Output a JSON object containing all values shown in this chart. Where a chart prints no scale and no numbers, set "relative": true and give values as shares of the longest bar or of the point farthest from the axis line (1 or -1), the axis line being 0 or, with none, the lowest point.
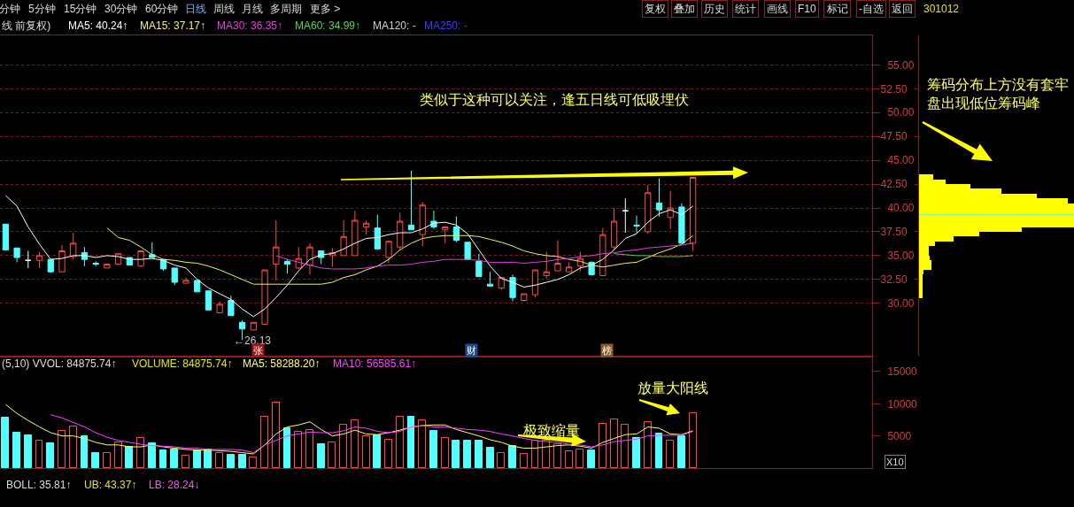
{
  "chart_data": [
    {
      "type": "candlestick",
      "title": "线 前复权)",
      "categories": [
        null,
        null,
        null,
        null,
        null,
        null,
        null,
        null,
        null,
        null,
        null,
        null,
        null,
        null,
        null,
        null,
        null,
        null,
        null,
        null,
        null,
        null,
        null,
        null,
        null,
        null,
        null,
        null,
        null,
        null,
        null,
        null,
        null,
        null,
        null,
        null,
        null,
        null,
        null,
        null,
        null,
        null,
        null,
        null,
        null,
        null,
        null,
        null,
        null,
        null,
        null,
        null,
        null,
        null,
        null,
        null,
        null,
        null,
        null,
        null,
        null,
        null
      ],
      "ohlc": [
        [
          38.3,
          38.3,
          35.6,
          35.6
        ],
        [
          35.8,
          35.8,
          34.3,
          34.8
        ],
        [
          34.5,
          35.5,
          33.7,
          34.5
        ],
        [
          34.5,
          35.4,
          33.7,
          35.0
        ],
        [
          34.6,
          34.6,
          33.2,
          33.3
        ],
        [
          33.3,
          36.1,
          33.3,
          35.5
        ],
        [
          34.9,
          37.4,
          34.6,
          36.3
        ],
        [
          35.3,
          35.9,
          33.9,
          34.6
        ],
        [
          34.2,
          34.4,
          33.9,
          34.1
        ],
        [
          33.7,
          34.1,
          33.7,
          34.1
        ],
        [
          34.1,
          35.2,
          34.0,
          35.2
        ],
        [
          34.8,
          34.8,
          34.0,
          34.0
        ],
        [
          33.9,
          35.5,
          33.8,
          35.5
        ],
        [
          35.1,
          36.4,
          34.8,
          34.8
        ],
        [
          34.6,
          34.6,
          33.4,
          33.6
        ],
        [
          33.7,
          33.7,
          31.9,
          32.2
        ],
        [
          32.1,
          32.7,
          32.1,
          32.4
        ],
        [
          32.4,
          32.4,
          31.2,
          31.2
        ],
        [
          31.3,
          31.3,
          29.3,
          29.3
        ],
        [
          29.0,
          30.2,
          29.0,
          29.9
        ],
        [
          30.3,
          30.8,
          28.7,
          28.7
        ],
        [
          28.0,
          28.2,
          26.13,
          27.3
        ],
        [
          27.2,
          28.0,
          27.2,
          28.0
        ],
        [
          27.8,
          33.5,
          27.8,
          33.5
        ],
        [
          34.1,
          38.7,
          32.4,
          35.9
        ],
        [
          34.4,
          34.6,
          33.1,
          34.1
        ],
        [
          33.7,
          35.9,
          33.6,
          34.7
        ],
        [
          34.0,
          36.3,
          33.0,
          35.9
        ],
        [
          35.5,
          35.5,
          34.1,
          34.8
        ],
        [
          35.0,
          35.8,
          33.8,
          35.3
        ],
        [
          35.0,
          38.7,
          35.0,
          37.0
        ],
        [
          35.0,
          39.7,
          35.0,
          38.7
        ],
        [
          38.0,
          38.7,
          37.2,
          38.4
        ],
        [
          37.9,
          39.3,
          35.6,
          35.7
        ],
        [
          34.8,
          36.5,
          34.2,
          36.5
        ],
        [
          35.9,
          39.5,
          35.6,
          38.6
        ],
        [
          38.2,
          43.9,
          37.7,
          37.7
        ],
        [
          37.2,
          40.6,
          36.0,
          40.3
        ],
        [
          38.6,
          39.7,
          37.8,
          38.0
        ],
        [
          37.7,
          38.1,
          36.3,
          38.0
        ],
        [
          38.0,
          39.1,
          36.4,
          36.6
        ],
        [
          36.4,
          36.4,
          34.6,
          34.6
        ],
        [
          34.4,
          35.2,
          32.8,
          32.8
        ],
        [
          32.0,
          33.3,
          31.8,
          31.8
        ],
        [
          31.6,
          32.7,
          31.4,
          32.7
        ],
        [
          32.7,
          33.0,
          30.2,
          30.6
        ],
        [
          30.3,
          31.0,
          30.2,
          31.0
        ],
        [
          30.9,
          33.5,
          30.6,
          33.5
        ],
        [
          32.9,
          35.4,
          32.6,
          33.3
        ],
        [
          33.4,
          36.6,
          33.4,
          34.2
        ],
        [
          33.3,
          34.3,
          33.3,
          33.8
        ],
        [
          33.9,
          35.4,
          33.4,
          34.7
        ],
        [
          34.3,
          34.4,
          32.9,
          33.0
        ],
        [
          32.9,
          37.9,
          32.9,
          37.2
        ],
        [
          35.9,
          40.0,
          35.6,
          38.6
        ],
        [
          39.7,
          41.0,
          37.4,
          39.7
        ],
        [
          38.2,
          39.2,
          37.4,
          38.1
        ],
        [
          37.5,
          42.4,
          37.3,
          41.6
        ],
        [
          40.5,
          43.1,
          39.1,
          39.8
        ],
        [
          39.0,
          41.8,
          37.8,
          40.0
        ],
        [
          40.1,
          40.5,
          36.3,
          36.3
        ],
        [
          36.3,
          43.2,
          35.5,
          43.2
        ]
      ],
      "colors": [
        "#52ffff",
        "#52ffff",
        "#ffffff",
        "#ff4a4a",
        "#52ffff",
        "#ff4a4a",
        "#ff4a4a",
        "#52ffff",
        "#52ffff",
        "#ff4a4a",
        "#ff4a4a",
        "#52ffff",
        "#ff4a4a",
        "#52ffff",
        "#52ffff",
        "#52ffff",
        "#ff4a4a",
        "#52ffff",
        "#52ffff",
        "#ff4a4a",
        "#52ffff",
        "#52ffff",
        "#ff4a4a",
        "#ff4a4a",
        "#ff4a4a",
        "#52ffff",
        "#ff4a4a",
        "#ff4a4a",
        "#52ffff",
        "#ff4a4a",
        "#ff4a4a",
        "#ff4a4a",
        "#ff4a4a",
        "#52ffff",
        "#ff4a4a",
        "#ff4a4a",
        "#52ffff",
        "#ff4a4a",
        "#52ffff",
        "#ff4a4a",
        "#52ffff",
        "#52ffff",
        "#52ffff",
        "#52ffff",
        "#ff4a4a",
        "#52ffff",
        "#ff4a4a",
        "#ff4a4a",
        "#ff4a4a",
        "#ff4a4a",
        "#ff4a4a",
        "#ff4a4a",
        "#52ffff",
        "#ff4a4a",
        "#ff4a4a",
        "#ffffff",
        "#52ffff",
        "#ff4a4a",
        "#52ffff",
        "#ff4a4a",
        "#52ffff",
        "#ff4a4a"
      ],
      "series": [
        {
          "name": "MA5: 40.24↑",
          "type": "line",
          "color": "#ffffff",
          "values": [
            41.3,
            40.2,
            38.0,
            36.2,
            34.6,
            34.7,
            35.0,
            35.0,
            34.8,
            35.0,
            34.9,
            34.6,
            34.6,
            34.7,
            34.5,
            34.0,
            33.7,
            32.5,
            31.6,
            31.0,
            30.4,
            29.4,
            28.6,
            29.4,
            30.6,
            31.9,
            33.4,
            34.6,
            35.1,
            35.2,
            35.7,
            36.3,
            36.8,
            36.9,
            37.2,
            37.4,
            37.4,
            37.8,
            38.4,
            38.5,
            38.2,
            37.3,
            35.6,
            33.9,
            32.6,
            32.2,
            31.7,
            31.9,
            32.2,
            32.5,
            33.0,
            33.7,
            34.0,
            34.6,
            35.6,
            36.8,
            37.3,
            38.5,
            39.4,
            39.8,
            39.3,
            40.2
          ]
        },
        {
          "name": "MA15: 37.17↑",
          "type": "line",
          "color": "#f0f060",
          "values": [
            null,
            null,
            null,
            null,
            null,
            null,
            null,
            null,
            null,
            37.9,
            36.9,
            36.6,
            35.9,
            35.1,
            34.6,
            34.5,
            34.3,
            34.2,
            33.9,
            33.5,
            33.0,
            32.5,
            32.0,
            32.0,
            32.0,
            32.0,
            32.0,
            32.0,
            32.0,
            32.2,
            32.7,
            33.0,
            33.5,
            33.9,
            34.6,
            35.6,
            36.3,
            36.8,
            37.0,
            37.1,
            37.1,
            37.1,
            37.0,
            36.7,
            36.4,
            36.0,
            35.5,
            35.2,
            35.0,
            34.9,
            34.6,
            34.4,
            34.0,
            33.8,
            34.0,
            34.2,
            34.3,
            34.8,
            35.3,
            35.7,
            36.2,
            37.1
          ]
        },
        {
          "name": "MA30: 36.35↑",
          "type": "line",
          "color": "#e040e0",
          "values": [
            null,
            null,
            null,
            null,
            null,
            null,
            null,
            null,
            null,
            null,
            null,
            null,
            null,
            null,
            null,
            null,
            null,
            null,
            null,
            null,
            null,
            null,
            null,
            null,
            35.0,
            34.6,
            34.3,
            34.0,
            33.7,
            33.6,
            33.6,
            33.6,
            33.7,
            33.9,
            34.0,
            34.0,
            34.1,
            34.3,
            34.4,
            34.6,
            34.6,
            34.6,
            34.5,
            34.3,
            34.3,
            34.3,
            34.2,
            34.3,
            34.4,
            34.6,
            34.7,
            34.9,
            35.0,
            35.2,
            35.3,
            35.5,
            35.6,
            35.8,
            35.9,
            36.0,
            36.1,
            36.3
          ]
        },
        {
          "name": "MA60: 34.99↑",
          "type": "line",
          "color": "#50d250",
          "values": [
            null,
            null,
            null,
            null,
            null,
            null,
            null,
            null,
            null,
            null,
            null,
            null,
            null,
            null,
            null,
            null,
            null,
            null,
            null,
            null,
            null,
            null,
            null,
            null,
            null,
            null,
            null,
            null,
            null,
            null,
            null,
            null,
            null,
            null,
            null,
            null,
            null,
            null,
            null,
            null,
            null,
            null,
            null,
            null,
            null,
            null,
            null,
            null,
            null,
            null,
            null,
            null,
            null,
            null,
            35.2,
            35.1,
            35.0,
            35.0,
            34.9,
            34.9,
            34.9,
            35.0
          ]
        },
        {
          "name": "MA120: -",
          "type": "line",
          "color": "#d0d0d0",
          "values": [
            null,
            null,
            null,
            null,
            null,
            null,
            null,
            null,
            null,
            null,
            null,
            null,
            null,
            null,
            null,
            null,
            null,
            null,
            null,
            null,
            null,
            null,
            null,
            null,
            null,
            null,
            null,
            null,
            null,
            null,
            null,
            null,
            null,
            null,
            null,
            null,
            null,
            null,
            null,
            null,
            null,
            null,
            null,
            null,
            null,
            null,
            null,
            null,
            null,
            null,
            null,
            null,
            null,
            null,
            null,
            null,
            null,
            null,
            null,
            null,
            null,
            null
          ]
        },
        {
          "name": "MA250: -",
          "type": "line",
          "color": "#3c3cff",
          "values": [
            null,
            null,
            null,
            null,
            null,
            null,
            null,
            null,
            null,
            null,
            null,
            null,
            null,
            null,
            null,
            null,
            null,
            null,
            null,
            null,
            null,
            null,
            null,
            null,
            null,
            null,
            null,
            null,
            null,
            null,
            null,
            null,
            null,
            null,
            null,
            null,
            null,
            null,
            null,
            null,
            null,
            null,
            null,
            null,
            null,
            null,
            null,
            null,
            null,
            null,
            null,
            null,
            null,
            null,
            null,
            null,
            null,
            null,
            null,
            null,
            null,
            null
          ]
        }
      ],
      "ylim": [
        24.5,
        58.1
      ],
      "yticks": [
        {
          "value": 30,
          "label": "30.00"
        },
        {
          "value": 32.5,
          "label": null
        },
        {
          "value": 35,
          "label": "35.00"
        },
        {
          "value": 37.5,
          "label": null
        },
        {
          "value": 40,
          "label": "40.00"
        },
        {
          "value": 42.5,
          "label": null
        },
        {
          "value": 45,
          "label": "45.00"
        },
        {
          "value": 47.5,
          "label": null
        },
        {
          "value": 50,
          "label": "50.00"
        },
        {
          "value": 52.5,
          "label": null
        },
        {
          "value": 55,
          "label": "55.00"
        }
      ],
      "grid": "y",
      "legend": "top left",
      "tick_labels": "y",
      "annotations": [
        "分钟",
        "5分钟",
        "15分钟",
        "30分钟",
        "60分钟",
        "日线",
        "周线",
        "月线",
        "多周期",
        "更多 >",
        "复权",
        "叠加",
        "历史",
        "统计",
        "画线",
        "F10",
        "标记",
        "-自选",
        "返回",
        "301012",
        "类似于这种可以关注，逢五日线可低吸埋伏",
        "←26.13",
        "张",
        "财",
        "榜"
      ]
    },
    {
      "type": "bar",
      "orientation": "horizontal",
      "relative": true,
      "x": [
        30.75,
        31.25,
        31.75,
        32.25,
        32.75,
        33.25,
        33.75,
        34.25,
        34.75,
        35.25,
        35.75,
        36.25,
        36.75,
        37.25,
        37.75,
        38.25,
        38.75,
        39.25,
        39.75,
        40.25,
        40.75,
        41.25,
        41.75,
        42.25,
        42.75,
        43.25
      ],
      "series": [
        {
          "color": "#ffff00",
          "values": [
            0.02,
            0.02,
            0.02,
            0.02,
            0.02,
            0.03,
            0.08,
            0.08,
            0.07,
            0.06,
            0.06,
            0.1,
            0.22,
            0.39,
            0.66,
            1,
            1,
            1,
            1,
            1,
            0.96,
            0.76,
            0.53,
            0.33,
            0.17,
            0.09
          ]
        }
      ],
      "ylim": [
        24.5,
        58.1
      ],
      "yticks": [
        {
          "value": 32.5,
          "label": "32.50"
        },
        {
          "value": 37.5,
          "label": "37.50"
        },
        {
          "value": 42.5,
          "label": "42.50"
        },
        {
          "value": 47.5,
          "label": "47.50"
        },
        {
          "value": 52.5,
          "label": "52.50"
        }
      ],
      "tick_labels": "y",
      "ref_lines": [
        {
          "axis": "y",
          "value": 39.3,
          "color": "#80ffa0"
        }
      ],
      "annotations": [
        "筹码分布上方没有套牢盘出现低位筹码峰"
      ]
    },
    {
      "type": "bar",
      "title": "(5,10) VVOL: 84875.74↑",
      "categories": [
        null,
        null,
        null,
        null,
        null,
        null,
        null,
        null,
        null,
        null,
        null,
        null,
        null,
        null,
        null,
        null,
        null,
        null,
        null,
        null,
        null,
        null,
        null,
        null,
        null,
        null,
        null,
        null,
        null,
        null,
        null,
        null,
        null,
        null,
        null,
        null,
        null,
        null,
        null,
        null,
        null,
        null,
        null,
        null,
        null,
        null,
        null,
        null,
        null,
        null,
        null,
        null,
        null,
        null,
        null,
        null,
        null,
        null,
        null,
        null,
        null,
        null
      ],
      "series": [
        {
          "type": "bar",
          "colors": [
            "#52ffff",
            "#52ffff",
            "#52ffff",
            "#ff4a4a",
            "#52ffff",
            "#ff4a4a",
            "#ff4a4a",
            "#52ffff",
            "#52ffff",
            "#ff4a4a",
            "#ff4a4a",
            "#52ffff",
            "#ff4a4a",
            "#52ffff",
            "#52ffff",
            "#52ffff",
            "#ff4a4a",
            "#52ffff",
            "#52ffff",
            "#ff4a4a",
            "#52ffff",
            "#52ffff",
            "#ff4a4a",
            "#ff4a4a",
            "#ff4a4a",
            "#52ffff",
            "#ff4a4a",
            "#ff4a4a",
            "#52ffff",
            "#ff4a4a",
            "#ff4a4a",
            "#ff4a4a",
            "#ff4a4a",
            "#52ffff",
            "#ff4a4a",
            "#ff4a4a",
            "#52ffff",
            "#ff4a4a",
            "#52ffff",
            "#ff4a4a",
            "#52ffff",
            "#52ffff",
            "#52ffff",
            "#52ffff",
            "#ff4a4a",
            "#52ffff",
            "#ff4a4a",
            "#ff4a4a",
            "#ff4a4a",
            "#ff4a4a",
            "#ff4a4a",
            "#ff4a4a",
            "#52ffff",
            "#ff4a4a",
            "#ff4a4a",
            "#ff4a4a",
            "#52ffff",
            "#ff4a4a",
            "#52ffff",
            "#ff4a4a",
            "#52ffff",
            "#ff4a4a"
          ],
          "values": [
            7900,
            5500,
            5100,
            4200,
            3800,
            5800,
            6400,
            5000,
            2400,
            2300,
            4000,
            3300,
            4700,
            3800,
            2700,
            2900,
            1900,
            2800,
            2900,
            2300,
            2100,
            2100,
            1700,
            8000,
            10200,
            6200,
            5700,
            5900,
            3700,
            4000,
            6700,
            7400,
            5000,
            5100,
            4400,
            8000,
            8000,
            7400,
            5800,
            4700,
            4300,
            4200,
            4300,
            3100,
            2400,
            3400,
            2200,
            4300,
            4300,
            3700,
            2600,
            2900,
            2700,
            6900,
            7600,
            6700,
            4700,
            7100,
            5300,
            4200,
            4900,
            8500
          ]
        },
        {
          "name": "MA5: 58288.20↑",
          "type": "line",
          "color": "#ffff66",
          "values": [
            9900,
            8500,
            7400,
            6400,
            5500,
            5000,
            5000,
            4600,
            4000,
            3600,
            3600,
            3300,
            3300,
            3600,
            3300,
            3100,
            2900,
            2800,
            2800,
            2700,
            2600,
            2400,
            2200,
            3600,
            5300,
            6400,
            6700,
            7200,
            6000,
            5000,
            5300,
            5900,
            5300,
            5200,
            5500,
            5900,
            6400,
            6600,
            6700,
            6700,
            6000,
            5500,
            5000,
            4400,
            4000,
            3400,
            3100,
            3100,
            3300,
            3500,
            3600,
            3400,
            3100,
            4000,
            4600,
            5200,
            5300,
            6400,
            6200,
            5300,
            5200,
            5800
          ]
        },
        {
          "name": "MA10: 56585.61↑",
          "type": "line",
          "color": "#ff40ff",
          "values": [
            null,
            null,
            null,
            null,
            8300,
            7800,
            7100,
            6400,
            5500,
            4800,
            4300,
            4000,
            3700,
            3500,
            3400,
            3300,
            3100,
            3100,
            2900,
            2900,
            2900,
            2800,
            2400,
            3600,
            4300,
            5000,
            5300,
            5600,
            5500,
            5500,
            5800,
            6400,
            6200,
            5700,
            5500,
            5700,
            6400,
            6600,
            6400,
            6400,
            6200,
            6000,
            5900,
            5700,
            5300,
            5000,
            4600,
            4300,
            4100,
            4000,
            3700,
            3600,
            3300,
            3600,
            4100,
            4300,
            4500,
            5000,
            5100,
            5100,
            5100,
            5700
          ]
        }
      ],
      "ylim": [
        0,
        17200
      ],
      "yticks": [
        5000,
        10000,
        15000
      ],
      "ylabel": "X10",
      "legend": "top left",
      "tick_labels": "y",
      "annotations": [
        "VOLUME: 84875.74↑",
        "放量大阳线",
        "极致缩量",
        "BOLL: 35.81↑",
        "UB: 43.37↑",
        "LB: 28.24↓"
      ]
    }
  ]
}
